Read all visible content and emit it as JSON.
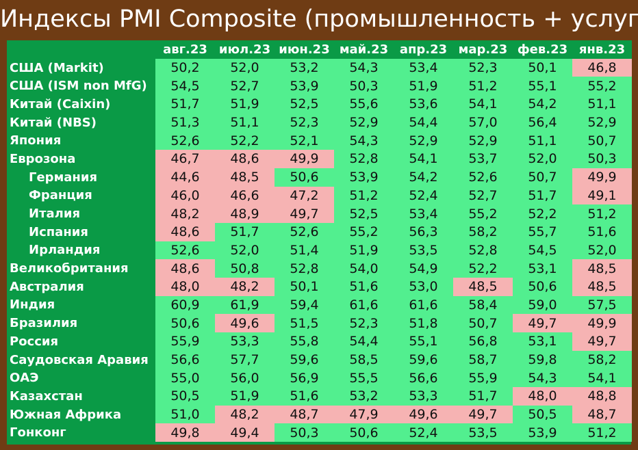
{
  "title": "Индексы PMI Composite (промышленность + услуги)",
  "colors": {
    "background": "#6f3c14",
    "header_green": "#0a9a46",
    "above_50": "#52ef8f",
    "below_50": "#f6b3b3"
  },
  "chart_data": {
    "type": "table",
    "title": "Индексы PMI Composite (промышленность + услуги)",
    "columns": [
      "авг.23",
      "июл.23",
      "июн.23",
      "май.23",
      "апр.23",
      "мар.23",
      "фев.23",
      "янв.23"
    ],
    "rows": [
      {
        "label": "США (Markit)",
        "sub": false,
        "values": [
          "50,2",
          "52,0",
          "53,2",
          "54,3",
          "53,4",
          "52,3",
          "50,1",
          "46,8"
        ]
      },
      {
        "label": "США (ISM non MfG)",
        "sub": false,
        "values": [
          "54,5",
          "52,7",
          "53,9",
          "50,3",
          "51,9",
          "51,2",
          "55,1",
          "55,2"
        ]
      },
      {
        "label": "Китай (Caixin)",
        "sub": false,
        "values": [
          "51,7",
          "51,9",
          "52,5",
          "55,6",
          "53,6",
          "54,1",
          "54,2",
          "51,1"
        ]
      },
      {
        "label": "Китай (NBS)",
        "sub": false,
        "values": [
          "51,3",
          "51,1",
          "52,3",
          "52,9",
          "54,4",
          "57,0",
          "56,4",
          "52,9"
        ]
      },
      {
        "label": "Япония",
        "sub": false,
        "values": [
          "52,6",
          "52,2",
          "52,1",
          "54,3",
          "52,9",
          "52,9",
          "51,1",
          "50,7"
        ]
      },
      {
        "label": "Еврозона",
        "sub": false,
        "values": [
          "46,7",
          "48,6",
          "49,9",
          "52,8",
          "54,1",
          "53,7",
          "52,0",
          "50,3"
        ]
      },
      {
        "label": "Германия",
        "sub": true,
        "values": [
          "44,6",
          "48,5",
          "50,6",
          "53,9",
          "54,2",
          "52,6",
          "50,7",
          "49,9"
        ]
      },
      {
        "label": "Франция",
        "sub": true,
        "values": [
          "46,0",
          "46,6",
          "47,2",
          "51,2",
          "52,4",
          "52,7",
          "51,7",
          "49,1"
        ]
      },
      {
        "label": "Италия",
        "sub": true,
        "values": [
          "48,2",
          "48,9",
          "49,7",
          "52,5",
          "53,4",
          "55,2",
          "52,2",
          "51,2"
        ]
      },
      {
        "label": "Испания",
        "sub": true,
        "values": [
          "48,6",
          "51,7",
          "52,6",
          "55,2",
          "56,3",
          "58,2",
          "55,7",
          "51,6"
        ]
      },
      {
        "label": "Ирландия",
        "sub": true,
        "values": [
          "52,6",
          "52,0",
          "51,4",
          "51,9",
          "53,5",
          "52,8",
          "54,5",
          "52,0"
        ]
      },
      {
        "label": "Великобритания",
        "sub": false,
        "values": [
          "48,6",
          "50,8",
          "52,8",
          "54,0",
          "54,9",
          "52,2",
          "53,1",
          "48,5"
        ]
      },
      {
        "label": "Австралия",
        "sub": false,
        "values": [
          "48,0",
          "48,2",
          "50,1",
          "51,6",
          "53,0",
          "48,5",
          "50,6",
          "48,5"
        ]
      },
      {
        "label": "Индия",
        "sub": false,
        "values": [
          "60,9",
          "61,9",
          "59,4",
          "61,6",
          "61,6",
          "58,4",
          "59,0",
          "57,5"
        ]
      },
      {
        "label": "Бразилия",
        "sub": false,
        "values": [
          "50,6",
          "49,6",
          "51,5",
          "52,3",
          "51,8",
          "50,7",
          "49,7",
          "49,9"
        ]
      },
      {
        "label": "Россия",
        "sub": false,
        "values": [
          "55,9",
          "53,3",
          "55,8",
          "54,4",
          "55,1",
          "56,8",
          "53,1",
          "49,7"
        ]
      },
      {
        "label": "Саудовская Аравия",
        "sub": false,
        "values": [
          "56,6",
          "57,7",
          "59,6",
          "58,5",
          "59,6",
          "58,7",
          "59,8",
          "58,2"
        ]
      },
      {
        "label": "ОАЭ",
        "sub": false,
        "values": [
          "55,0",
          "56,0",
          "56,9",
          "55,5",
          "56,6",
          "55,9",
          "54,3",
          "54,1"
        ]
      },
      {
        "label": "Казахстан",
        "sub": false,
        "values": [
          "50,5",
          "51,9",
          "51,6",
          "53,2",
          "53,3",
          "51,7",
          "48,0",
          "48,8"
        ]
      },
      {
        "label": "Южная Африка",
        "sub": false,
        "values": [
          "51,0",
          "48,2",
          "48,7",
          "47,9",
          "49,6",
          "49,7",
          "50,5",
          "48,7"
        ]
      },
      {
        "label": "Гонконг",
        "sub": false,
        "values": [
          "49,8",
          "49,4",
          "50,3",
          "50,6",
          "52,4",
          "53,5",
          "53,9",
          "51,2"
        ]
      }
    ]
  }
}
